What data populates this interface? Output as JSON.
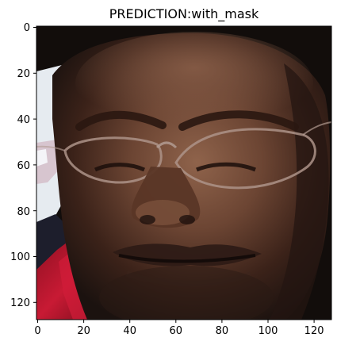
{
  "figure": {
    "title": "PREDICTION:with_mask"
  },
  "axes": {
    "x_ticks": [
      "0",
      "20",
      "40",
      "60",
      "80",
      "100",
      "120"
    ],
    "y_ticks": [
      "0",
      "20",
      "40",
      "60",
      "80",
      "100",
      "120"
    ],
    "xlim": [
      -0.5,
      127.5
    ],
    "ylim": [
      127.5,
      -0.5
    ]
  },
  "image": {
    "subject": "close-up photo of a man's face wearing glasses",
    "size": [
      128,
      128
    ],
    "colors": {
      "skin_dark": "#3b2219",
      "skin_mid": "#6c4533",
      "skin_light": "#8f634b",
      "background_left": "#e6ebf0",
      "shirt_red": "#b5142c",
      "shirt_dark": "#1d1e2c",
      "background_dark": "#120d0b"
    }
  }
}
